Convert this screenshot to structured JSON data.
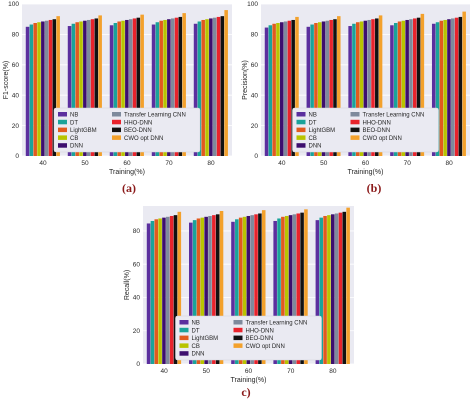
{
  "colors": {
    "NB": "#5b2f9e",
    "DT": "#1aa39a",
    "LightGBM": "#e15a1e",
    "CB": "#b8c400",
    "DNN": "#3d0f6e",
    "Transfer Learning CNN": "#7e8a9c",
    "HHO-DNN": "#e8232c",
    "BEO-DNN": "#111111",
    "CWO opt DNN": "#f3a12c"
  },
  "chart_data": [
    {
      "panel": "(a)",
      "type": "bar",
      "categories": [
        "40",
        "50",
        "60",
        "70",
        "80"
      ],
      "xlabel": "Training(%)",
      "ylabel": "F1-score(%)",
      "ylim": [
        0,
        100
      ],
      "yticks": [
        "0",
        "20",
        "40",
        "60",
        "80",
        "100"
      ],
      "grid": true,
      "legend": "bottom-center",
      "series": [
        {
          "name": "NB",
          "values": [
            85.0,
            85.5,
            86.0,
            86.5,
            87.0
          ]
        },
        {
          "name": "DT",
          "values": [
            86.5,
            87.0,
            87.5,
            88.0,
            88.5
          ]
        },
        {
          "name": "LightGBM",
          "values": [
            87.5,
            88.0,
            88.5,
            89.0,
            89.5
          ]
        },
        {
          "name": "CB",
          "values": [
            88.0,
            88.5,
            89.0,
            89.5,
            90.0
          ]
        },
        {
          "name": "DNN",
          "values": [
            88.5,
            89.0,
            89.5,
            90.0,
            90.5
          ]
        },
        {
          "name": "Transfer Learning CNN",
          "values": [
            89.0,
            89.5,
            90.0,
            90.5,
            91.0
          ]
        },
        {
          "name": "HHO-DNN",
          "values": [
            89.5,
            90.0,
            90.5,
            91.0,
            91.5
          ]
        },
        {
          "name": "BEO-DNN",
          "values": [
            90.0,
            90.5,
            91.0,
            91.5,
            92.0
          ]
        },
        {
          "name": "CWO opt DNN",
          "values": [
            92.0,
            92.5,
            93.0,
            94.0,
            96.0
          ]
        }
      ]
    },
    {
      "panel": "(b)",
      "type": "bar",
      "categories": [
        "40",
        "50",
        "60",
        "70",
        "80"
      ],
      "xlabel": "Training(%)",
      "ylabel": "Precision(%)",
      "ylim": [
        0,
        100
      ],
      "yticks": [
        "0",
        "20",
        "40",
        "60",
        "80",
        "100"
      ],
      "grid": true,
      "legend": "bottom-center",
      "series": [
        {
          "name": "NB",
          "values": [
            84.5,
            85.0,
            85.5,
            86.0,
            87.0
          ]
        },
        {
          "name": "DT",
          "values": [
            86.0,
            86.5,
            87.0,
            87.5,
            88.0
          ]
        },
        {
          "name": "LightGBM",
          "values": [
            87.0,
            87.5,
            88.0,
            88.5,
            89.0
          ]
        },
        {
          "name": "CB",
          "values": [
            87.5,
            88.0,
            88.5,
            89.0,
            89.5
          ]
        },
        {
          "name": "DNN",
          "values": [
            88.0,
            88.5,
            89.0,
            89.5,
            90.0
          ]
        },
        {
          "name": "Transfer Learning CNN",
          "values": [
            88.5,
            89.0,
            89.5,
            90.0,
            90.5
          ]
        },
        {
          "name": "HHO-DNN",
          "values": [
            89.0,
            89.5,
            90.0,
            90.5,
            91.0
          ]
        },
        {
          "name": "BEO-DNN",
          "values": [
            89.5,
            90.0,
            90.5,
            91.0,
            91.5
          ]
        },
        {
          "name": "CWO opt DNN",
          "values": [
            91.5,
            92.0,
            92.5,
            93.5,
            95.0
          ]
        }
      ]
    },
    {
      "panel": "c)",
      "type": "bar",
      "categories": [
        "40",
        "50",
        "60",
        "70",
        "80"
      ],
      "xlabel": "Training(%)",
      "ylabel": "Recall(%)",
      "ylim": [
        0,
        95
      ],
      "yticks": [
        "0",
        "20",
        "40",
        "60",
        "80"
      ],
      "grid": true,
      "legend": "bottom-center",
      "series": [
        {
          "name": "NB",
          "values": [
            84.5,
            85.0,
            85.5,
            86.0,
            86.5
          ]
        },
        {
          "name": "DT",
          "values": [
            86.0,
            86.5,
            87.0,
            87.5,
            88.0
          ]
        },
        {
          "name": "LightGBM",
          "values": [
            87.0,
            87.5,
            88.0,
            88.5,
            89.0
          ]
        },
        {
          "name": "CB",
          "values": [
            87.5,
            88.0,
            88.5,
            89.0,
            89.5
          ]
        },
        {
          "name": "DNN",
          "values": [
            88.0,
            88.5,
            89.0,
            89.5,
            90.0
          ]
        },
        {
          "name": "Transfer Learning CNN",
          "values": [
            88.5,
            89.0,
            89.5,
            90.0,
            90.5
          ]
        },
        {
          "name": "HHO-DNN",
          "values": [
            89.0,
            89.5,
            90.0,
            90.5,
            91.0
          ]
        },
        {
          "name": "BEO-DNN",
          "values": [
            89.5,
            90.0,
            90.5,
            91.0,
            91.5
          ]
        },
        {
          "name": "CWO opt DNN",
          "values": [
            91.5,
            92.0,
            92.5,
            93.0,
            94.0
          ]
        }
      ]
    }
  ]
}
